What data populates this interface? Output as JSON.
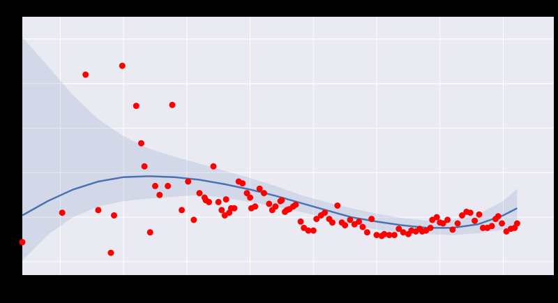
{
  "chart_data": {
    "type": "scatter",
    "title": "",
    "xlabel": "",
    "ylabel": "",
    "offset_text": "",
    "grid": true,
    "xlim": [
      -0.6,
      7.8
    ],
    "ylim": [
      -0.15,
      2.75
    ],
    "xticks": [
      0,
      1,
      2,
      3,
      4,
      5,
      6,
      7
    ],
    "xtick_labels": [
      "",
      "",
      "",
      "",
      "",
      "",
      "",
      ""
    ],
    "yticks": [
      0,
      0.5,
      1.0,
      1.5,
      2.0,
      2.5
    ],
    "ytick_labels": [
      "",
      "",
      "",
      "",
      "",
      ""
    ],
    "colors": {
      "scatter": "#ff0000",
      "fit_line": "#4c72b0",
      "confidence_band": "#4c72b0",
      "axes_background": "#eaeaf2",
      "grid": "#ffffff"
    },
    "scatter": {
      "x": [
        -0.6,
        0.03,
        0.4,
        0.6,
        0.8,
        0.85,
        0.98,
        1.2,
        1.28,
        1.33,
        1.42,
        1.5,
        1.57,
        1.7,
        1.77,
        1.92,
        2.02,
        2.11,
        2.2,
        2.28,
        2.3,
        2.35,
        2.42,
        2.5,
        2.55,
        2.6,
        2.62,
        2.67,
        2.7,
        2.75,
        2.82,
        2.88,
        2.95,
        3.0,
        3.02,
        3.08,
        3.15,
        3.22,
        3.3,
        3.35,
        3.4,
        3.48,
        3.5,
        3.55,
        3.58,
        3.62,
        3.68,
        3.72,
        3.8,
        3.85,
        3.92,
        4.0,
        4.05,
        4.12,
        4.18,
        4.25,
        4.3,
        4.38,
        4.45,
        4.5,
        4.58,
        4.65,
        4.72,
        4.78,
        4.85,
        4.92,
        5.0,
        5.08,
        5.12,
        5.2,
        5.28,
        5.35,
        5.42,
        5.5,
        5.55,
        5.62,
        5.68,
        5.72,
        5.78,
        5.85,
        5.88,
        5.95,
        6.0,
        6.05,
        6.12,
        6.2,
        6.28,
        6.35,
        6.42,
        6.48,
        6.55,
        6.62,
        6.68,
        6.75,
        6.82,
        6.88,
        6.92,
        6.98,
        7.05,
        7.12,
        7.18,
        7.22
      ],
      "y": [
        0.22,
        0.55,
        2.1,
        0.58,
        0.1,
        0.52,
        2.2,
        1.75,
        1.33,
        1.07,
        0.33,
        0.85,
        0.75,
        0.85,
        1.76,
        0.58,
        0.9,
        0.47,
        0.77,
        0.72,
        0.69,
        0.67,
        1.07,
        0.67,
        0.58,
        0.52,
        0.7,
        0.55,
        0.6,
        0.6,
        0.9,
        0.88,
        0.77,
        0.72,
        0.6,
        0.62,
        0.82,
        0.77,
        0.65,
        0.58,
        0.62,
        0.68,
        0.69,
        0.56,
        0.58,
        0.59,
        0.62,
        0.64,
        0.45,
        0.38,
        0.35,
        0.35,
        0.48,
        0.52,
        0.55,
        0.48,
        0.44,
        0.63,
        0.44,
        0.41,
        0.47,
        0.42,
        0.45,
        0.39,
        0.33,
        0.48,
        0.3,
        0.29,
        0.31,
        0.3,
        0.3,
        0.37,
        0.33,
        0.31,
        0.35,
        0.34,
        0.37,
        0.34,
        0.35,
        0.38,
        0.47,
        0.5,
        0.44,
        0.43,
        0.47,
        0.36,
        0.43,
        0.52,
        0.56,
        0.55,
        0.46,
        0.53,
        0.38,
        0.38,
        0.4,
        0.48,
        0.51,
        0.43,
        0.34,
        0.37,
        0.38,
        0.43
      ]
    },
    "fit_line": {
      "x": [
        -0.6,
        -0.2,
        0.2,
        0.6,
        1.0,
        1.4,
        1.8,
        2.2,
        2.6,
        3.0,
        3.4,
        3.8,
        4.2,
        4.6,
        5.0,
        5.4,
        5.8,
        6.2,
        6.6,
        7.0,
        7.22
      ],
      "y": [
        0.52,
        0.68,
        0.81,
        0.9,
        0.95,
        0.96,
        0.95,
        0.92,
        0.87,
        0.81,
        0.74,
        0.66,
        0.58,
        0.5,
        0.45,
        0.41,
        0.38,
        0.38,
        0.42,
        0.52,
        0.6
      ]
    },
    "confidence_band": {
      "x": [
        -0.6,
        -0.2,
        0.2,
        0.6,
        1.0,
        1.4,
        1.8,
        2.2,
        2.6,
        3.0,
        3.4,
        3.8,
        4.2,
        4.6,
        5.0,
        5.4,
        5.8,
        6.2,
        6.6,
        7.0,
        7.22
      ],
      "upper": [
        2.52,
        2.2,
        1.87,
        1.6,
        1.41,
        1.27,
        1.18,
        1.1,
        1.02,
        0.94,
        0.85,
        0.75,
        0.67,
        0.6,
        0.54,
        0.49,
        0.46,
        0.47,
        0.53,
        0.68,
        0.82
      ],
      "lower": [
        0.01,
        0.3,
        0.5,
        0.62,
        0.68,
        0.71,
        0.73,
        0.75,
        0.72,
        0.67,
        0.62,
        0.56,
        0.49,
        0.41,
        0.36,
        0.33,
        0.31,
        0.3,
        0.32,
        0.36,
        0.4
      ]
    }
  }
}
